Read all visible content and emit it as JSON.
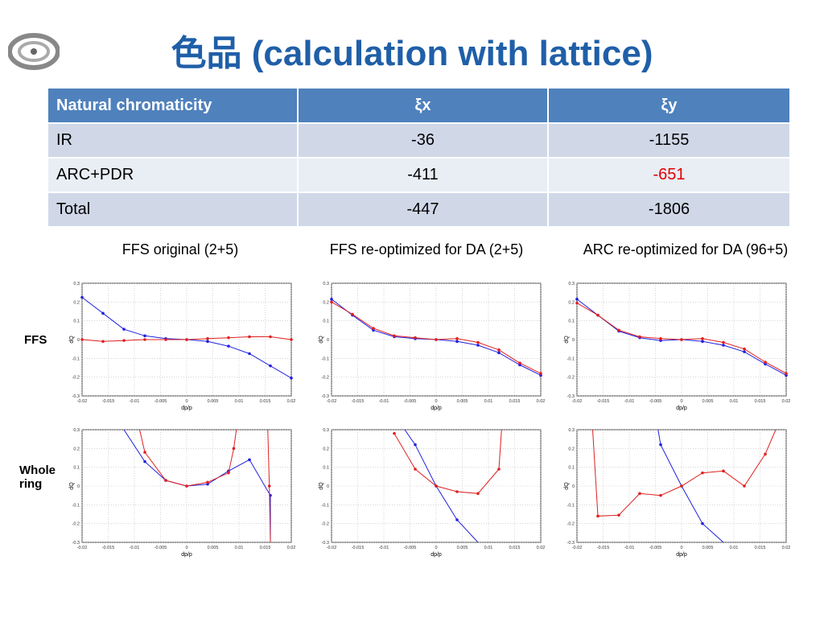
{
  "title": "色品 (calculation with lattice)",
  "table": {
    "headers": [
      "Natural chromaticity",
      "ξx",
      "ξy"
    ],
    "rows": [
      {
        "label": "IR",
        "xi_x": "-36",
        "xi_y": "-1155"
      },
      {
        "label": "ARC+PDR",
        "xi_x": "-411",
        "xi_y": "-651"
      },
      {
        "label": "Total",
        "xi_x": "-447",
        "xi_y": "-1806"
      }
    ],
    "highlight_color": "#e00000"
  },
  "column_titles": [
    "FFS original (2+5)",
    "FFS re-optimized for DA (2+5)",
    "ARC re-optimized for DA (96+5)"
  ],
  "row_labels": [
    "FFS",
    "Whole ring"
  ],
  "colors": {
    "header": "#4f81bd",
    "title": "#1f5fa8",
    "series_blue": "#2020e0",
    "series_red": "#e02020"
  },
  "chart_data": [
    {
      "type": "line",
      "xlabel": "dp/p",
      "ylabel": "dQ",
      "xlim": [
        -0.02,
        0.02
      ],
      "ylim": [
        -0.3,
        0.3
      ],
      "xticks": [
        "-0.02",
        "-0.015",
        "-0.01",
        "-0.005",
        "0",
        "0.005",
        "0.01",
        "0.015",
        "0.02"
      ],
      "yticks": [
        "0.3",
        "0.2",
        "0.1",
        "0",
        "-0.1",
        "-0.2",
        "-0.3"
      ],
      "series": [
        {
          "color": "blue",
          "x": [
            -0.02,
            -0.016,
            -0.012,
            -0.008,
            -0.004,
            0,
            0.004,
            0.008,
            0.012,
            0.016,
            0.02
          ],
          "y": [
            0.225,
            0.14,
            0.055,
            0.02,
            0.005,
            0,
            -0.01,
            -0.035,
            -0.075,
            -0.14,
            -0.205
          ]
        },
        {
          "color": "red",
          "x": [
            -0.02,
            -0.016,
            -0.012,
            -0.008,
            -0.004,
            0,
            0.004,
            0.008,
            0.012,
            0.016,
            0.02
          ],
          "y": [
            0,
            -0.01,
            -0.005,
            0,
            0,
            0,
            0.005,
            0.01,
            0.015,
            0.015,
            0
          ]
        }
      ]
    },
    {
      "type": "line",
      "xlabel": "dp/p",
      "ylabel": "dQ",
      "xlim": [
        -0.02,
        0.02
      ],
      "ylim": [
        -0.3,
        0.3
      ],
      "xticks": [
        "-0.02",
        "-0.015",
        "-0.01",
        "-0.005",
        "0",
        "0.005",
        "0.01",
        "0.015",
        "0.02"
      ],
      "yticks": [
        "0.3",
        "0.2",
        "0.1",
        "0",
        "-0.1",
        "-0.2",
        "-0.3"
      ],
      "series": [
        {
          "color": "blue",
          "x": [
            -0.02,
            -0.016,
            -0.012,
            -0.008,
            -0.004,
            0,
            0.004,
            0.008,
            0.012,
            0.016,
            0.02
          ],
          "y": [
            0.215,
            0.13,
            0.05,
            0.015,
            0.005,
            0,
            -0.01,
            -0.03,
            -0.07,
            -0.135,
            -0.19
          ]
        },
        {
          "color": "red",
          "x": [
            -0.02,
            -0.016,
            -0.012,
            -0.008,
            -0.004,
            0,
            0.004,
            0.008,
            0.012,
            0.016,
            0.02
          ],
          "y": [
            0.2,
            0.135,
            0.06,
            0.02,
            0.01,
            0,
            0.005,
            -0.015,
            -0.055,
            -0.125,
            -0.18
          ]
        }
      ]
    },
    {
      "type": "line",
      "xlabel": "dp/p",
      "ylabel": "dQ",
      "xlim": [
        -0.02,
        0.02
      ],
      "ylim": [
        -0.3,
        0.3
      ],
      "xticks": [
        "-0.02",
        "-0.015",
        "-0.01",
        "-0.005",
        "0",
        "0.005",
        "0.01",
        "0.015",
        "0.02"
      ],
      "yticks": [
        "0.3",
        "0.2",
        "0.1",
        "0",
        "-0.1",
        "-0.2",
        "-0.3"
      ],
      "series": [
        {
          "color": "blue",
          "x": [
            -0.02,
            -0.016,
            -0.012,
            -0.008,
            -0.004,
            0,
            0.004,
            0.008,
            0.012,
            0.016,
            0.02
          ],
          "y": [
            0.215,
            0.13,
            0.045,
            0.01,
            -0.005,
            0,
            -0.01,
            -0.03,
            -0.065,
            -0.13,
            -0.19
          ]
        },
        {
          "color": "red",
          "x": [
            -0.02,
            -0.016,
            -0.012,
            -0.008,
            -0.004,
            0,
            0.004,
            0.008,
            0.012,
            0.016,
            0.02
          ],
          "y": [
            0.195,
            0.13,
            0.05,
            0.015,
            0.005,
            0,
            0.005,
            -0.015,
            -0.05,
            -0.12,
            -0.18
          ]
        }
      ]
    },
    {
      "type": "line",
      "xlabel": "dp/p",
      "ylabel": "dQ",
      "xlim": [
        -0.02,
        0.02
      ],
      "ylim": [
        -0.3,
        0.3
      ],
      "xticks": [
        "-0.02",
        "-0.015",
        "-0.01",
        "-0.005",
        "0",
        "0.005",
        "0.01",
        "0.015",
        "0.02"
      ],
      "yticks": [
        "0.3",
        "0.2",
        "0.1",
        "0",
        "-0.1",
        "-0.2",
        "-0.3"
      ],
      "series": [
        {
          "color": "blue",
          "x": [
            -0.012,
            -0.008,
            -0.004,
            0,
            0.004,
            0.008,
            0.012,
            0.016,
            0.016
          ],
          "y": [
            0.3,
            0.13,
            0.03,
            0,
            0.01,
            0.08,
            0.14,
            -0.05,
            -0.3
          ]
        },
        {
          "color": "red",
          "x": [
            -0.009,
            -0.008,
            -0.004,
            0,
            0.004,
            0.008,
            0.009,
            0.0095
          ],
          "y": [
            0.3,
            0.18,
            0.03,
            0,
            0.02,
            0.07,
            0.2,
            0.3
          ]
        },
        {
          "color": "red",
          "x": [
            0.0155,
            0.0158,
            0.016
          ],
          "y": [
            0.3,
            0,
            -0.3
          ]
        }
      ]
    },
    {
      "type": "line",
      "xlabel": "dp/p",
      "ylabel": "dQ",
      "xlim": [
        -0.02,
        0.02
      ],
      "ylim": [
        -0.3,
        0.3
      ],
      "xticks": [
        "-0.02",
        "-0.015",
        "-0.01",
        "-0.005",
        "0",
        "0.005",
        "0.01",
        "0.015",
        "0.02"
      ],
      "yticks": [
        "0.3",
        "0.2",
        "0.1",
        "0",
        "-0.1",
        "-0.2",
        "-0.3"
      ],
      "series": [
        {
          "color": "blue",
          "x": [
            -0.006,
            -0.004,
            0,
            0.004,
            0.008
          ],
          "y": [
            0.3,
            0.22,
            0,
            -0.18,
            -0.3
          ]
        },
        {
          "color": "red",
          "x": [
            -0.008,
            -0.004,
            0,
            0.004,
            0.008,
            0.012,
            0.0125
          ],
          "y": [
            0.28,
            0.09,
            0,
            -0.03,
            -0.04,
            0.09,
            0.3
          ]
        }
      ]
    },
    {
      "type": "line",
      "xlabel": "dp/p",
      "ylabel": "dQ",
      "xlim": [
        -0.02,
        0.02
      ],
      "ylim": [
        -0.3,
        0.3
      ],
      "xticks": [
        "-0.02",
        "-0.015",
        "-0.01",
        "-0.005",
        "0",
        "0.005",
        "0.01",
        "0.015",
        "0.02"
      ],
      "yticks": [
        "0.3",
        "0.2",
        "0.1",
        "0",
        "-0.1",
        "-0.2",
        "-0.3"
      ],
      "series": [
        {
          "color": "blue",
          "x": [
            -0.0045,
            -0.004,
            0,
            0.004,
            0.008
          ],
          "y": [
            0.3,
            0.22,
            0,
            -0.2,
            -0.3
          ]
        },
        {
          "color": "red",
          "x": [
            -0.017,
            -0.016,
            -0.012,
            -0.008,
            -0.004,
            0,
            0.004,
            0.008,
            0.012,
            0.016,
            0.018
          ],
          "y": [
            0.3,
            -0.16,
            -0.155,
            -0.04,
            -0.05,
            0,
            0.07,
            0.08,
            0,
            0.17,
            0.3
          ]
        }
      ]
    }
  ]
}
